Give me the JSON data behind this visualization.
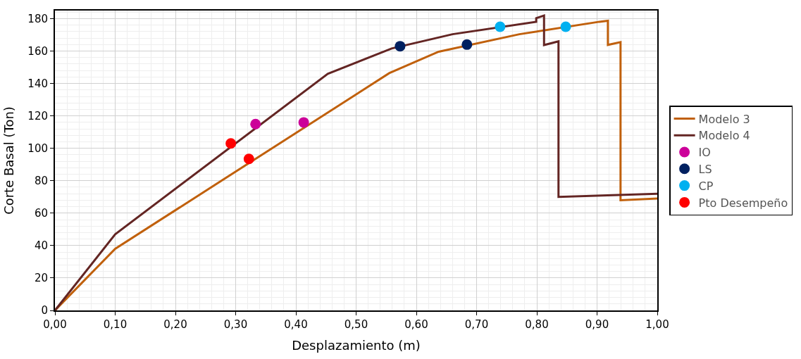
{
  "chart_data": {
    "type": "line",
    "xlabel": "Desplazamiento (m)",
    "ylabel": "Corte Basal (Ton)",
    "xlim": [
      0,
      1.0
    ],
    "ylim": [
      0,
      185
    ],
    "xticks": [
      {
        "value": 0,
        "label": "0,00"
      },
      {
        "value": 0.1,
        "label": "0,10"
      },
      {
        "value": 0.2,
        "label": "0,20"
      },
      {
        "value": 0.3,
        "label": "0,30"
      },
      {
        "value": 0.4,
        "label": "0,40"
      },
      {
        "value": 0.5,
        "label": "0,50"
      },
      {
        "value": 0.6,
        "label": "0,60"
      },
      {
        "value": 0.7,
        "label": "0,70"
      },
      {
        "value": 0.8,
        "label": "0,80"
      },
      {
        "value": 0.9,
        "label": "0,90"
      },
      {
        "value": 1.0,
        "label": "1,00"
      }
    ],
    "yticks": [
      0,
      20,
      40,
      60,
      80,
      100,
      120,
      140,
      160,
      180
    ],
    "grid": true,
    "legend": "right",
    "series": [
      {
        "name": "Modelo 3",
        "color": "#c0600c",
        "marker": "none",
        "x": [
          0,
          0.1,
          0.555,
          0.637,
          0.771,
          0.904,
          0.918,
          0.918,
          0.939,
          0.939,
          1.0
        ],
        "values": [
          0,
          38,
          146.4,
          159.6,
          170.4,
          178.1,
          178.7,
          163.8,
          165.5,
          68,
          69
        ]
      },
      {
        "name": "Modelo 4",
        "color": "#632523",
        "marker": "none",
        "x": [
          0,
          0.1,
          0.453,
          0.559,
          0.66,
          0.799,
          0.799,
          0.812,
          0.812,
          0.836,
          0.836,
          1.0
        ],
        "values": [
          0,
          47,
          146,
          161.6,
          170.4,
          178.1,
          180.3,
          181.9,
          163.7,
          166,
          70,
          72
        ]
      },
      {
        "name": "IO",
        "type": "scatter",
        "color": "#cc0099",
        "marker": "circle",
        "x": [
          0.333,
          0.413
        ],
        "values": [
          115,
          116
        ]
      },
      {
        "name": "LS",
        "type": "scatter",
        "color": "#002060",
        "marker": "circle",
        "x": [
          0.573,
          0.684
        ],
        "values": [
          163,
          164
        ]
      },
      {
        "name": "CP",
        "type": "scatter",
        "color": "#00b0f0",
        "marker": "circle",
        "x": [
          0.739,
          0.848
        ],
        "values": [
          175,
          175
        ]
      },
      {
        "name": "Pto Desempeño",
        "type": "scatter",
        "color": "#ff0000",
        "marker": "circle",
        "x": [
          0.292,
          0.322
        ],
        "values": [
          103,
          93.5
        ]
      }
    ]
  }
}
